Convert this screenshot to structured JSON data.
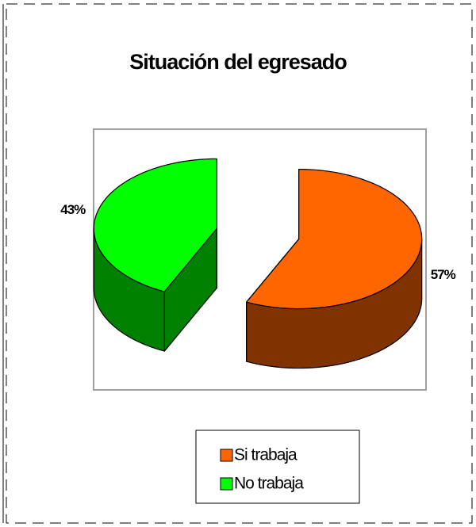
{
  "chart_data": {
    "type": "pie",
    "title": "Situación del egresado",
    "categories": [
      "Si trabaja",
      "No trabaja"
    ],
    "values": [
      57,
      43
    ],
    "value_labels": [
      "57%",
      "43%"
    ],
    "colors": [
      "#ff6600",
      "#00ff00"
    ],
    "legend": "bottom"
  }
}
